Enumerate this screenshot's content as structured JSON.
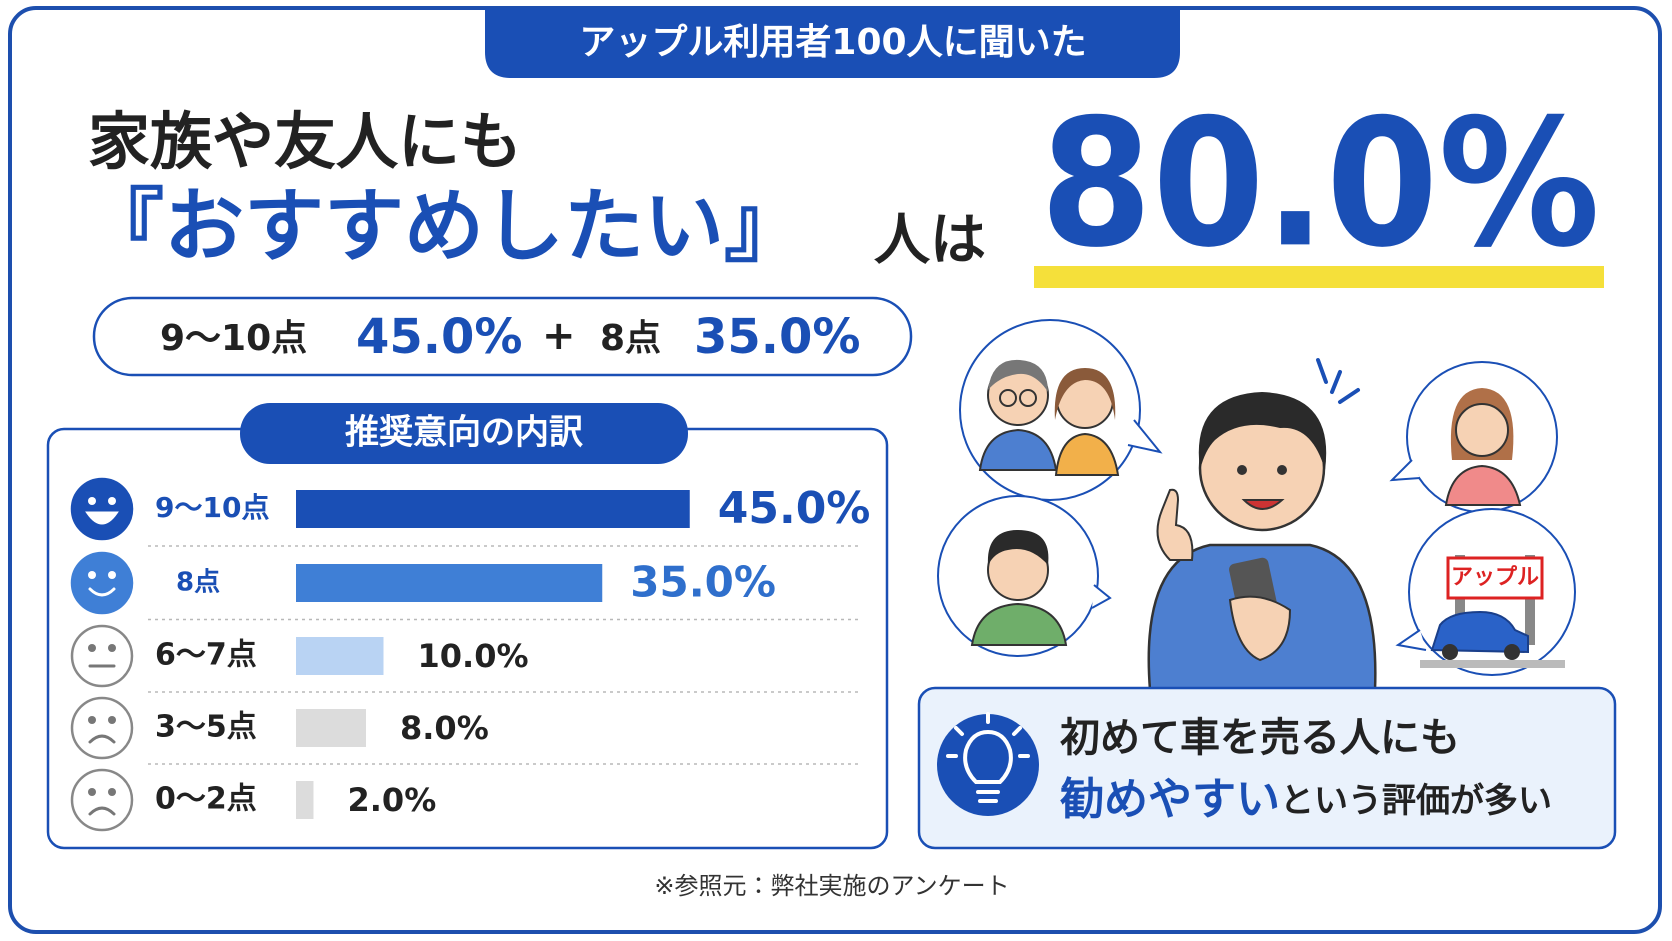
{
  "header": {
    "tab": "アップル利用者100人に聞いた",
    "line1": "家族や友人にも",
    "line2_highlight": "『おすすめしたい』",
    "line2_rest": "人は",
    "big_number": "80.0%"
  },
  "summary": {
    "label1": "9〜10点",
    "value1": "45.0%",
    "plus": "+",
    "label2": "8点",
    "value2": "35.0%"
  },
  "chart_data": {
    "type": "bar",
    "orientation": "horizontal",
    "title": "推奨意向の内訳",
    "categories": [
      "9〜10点",
      "8点",
      "6〜7点",
      "3〜5点",
      "0〜2点"
    ],
    "values": [
      45,
      35,
      10,
      8,
      2
    ],
    "value_labels": [
      "45.0%",
      "35.0%",
      "10.0%",
      "8.0%",
      "2.0%"
    ],
    "colors": [
      "#1a4fb5",
      "#3f7fd6",
      "#b9d3f3",
      "#dcdcdc",
      "#dcdcdc"
    ]
  },
  "illustration": {
    "sign_text": "アップル"
  },
  "callout": {
    "line1": "初めて車を売る人にも",
    "line2_highlight": "勧めやすい",
    "line2_rest": "という評価が多い"
  },
  "footnote": "※参照元：弊社実施のアンケート"
}
